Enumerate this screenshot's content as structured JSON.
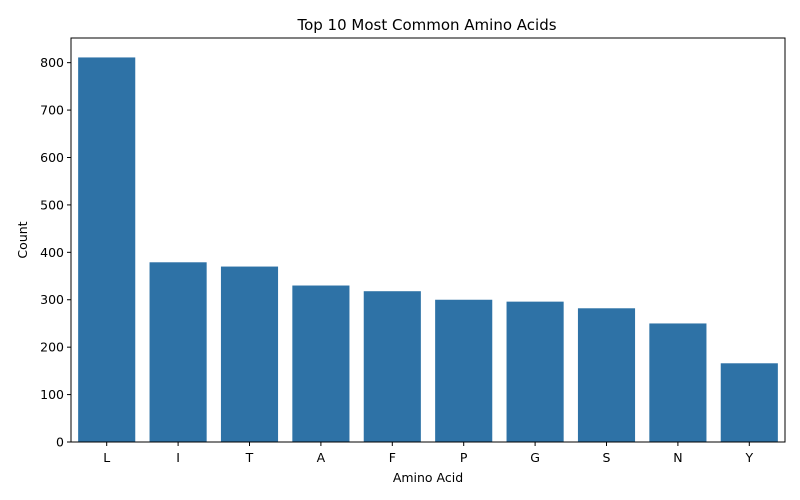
{
  "chart_data": {
    "type": "bar",
    "title": "Top 10 Most Common Amino Acids",
    "xlabel": "Amino Acid",
    "ylabel": "Count",
    "categories": [
      "L",
      "I",
      "T",
      "A",
      "F",
      "P",
      "G",
      "S",
      "N",
      "Y"
    ],
    "values": [
      811,
      379,
      370,
      330,
      318,
      300,
      296,
      282,
      250,
      166
    ],
    "ylim": [
      0,
      852
    ],
    "yticks": [
      0,
      100,
      200,
      300,
      400,
      500,
      600,
      700,
      800
    ],
    "bar_color": "#2e72a6",
    "grid": false,
    "legend": "none"
  }
}
